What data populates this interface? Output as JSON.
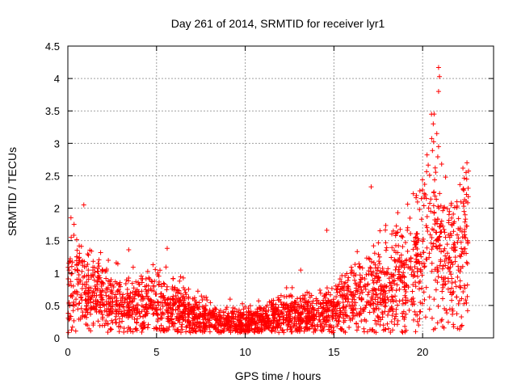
{
  "chart_data": {
    "type": "scatter",
    "title": "Day 261 of 2014, SRMTID for receiver lyr1",
    "xlabel": "GPS time / hours",
    "ylabel": "SRMTID / TECUs",
    "xlim": [
      0,
      24
    ],
    "ylim": [
      0,
      4.5
    ],
    "xticks": [
      0,
      5,
      10,
      15,
      20
    ],
    "yticks": [
      0,
      0.5,
      1,
      1.5,
      2,
      2.5,
      3,
      3.5,
      4,
      4.5
    ],
    "xtick_labels": [
      "0",
      "5",
      "10",
      "15",
      "20"
    ],
    "ytick_labels": [
      "0",
      "0.5",
      "1",
      "1.5",
      "2",
      "2.5",
      "3",
      "3.5",
      "4",
      "4.5"
    ],
    "grid": true,
    "marker": "plus",
    "color": "#ff0000",
    "series": [
      {
        "name": "lyr1",
        "trend_hours": [
          0,
          0.5,
          1,
          1.5,
          2,
          3,
          4,
          5,
          6,
          7,
          8,
          8.8,
          9.5,
          10.5,
          11.5,
          12.5,
          13.5,
          14.5,
          15.5,
          16.5,
          17.5,
          18.5,
          19.5,
          20,
          20.5,
          21,
          21.5,
          22,
          22.6
        ],
        "trend_median_tecu": [
          0.75,
          0.85,
          0.8,
          0.65,
          0.6,
          0.5,
          0.5,
          0.55,
          0.45,
          0.35,
          0.3,
          0.2,
          0.25,
          0.25,
          0.3,
          0.35,
          0.35,
          0.4,
          0.5,
          0.65,
          0.8,
          0.9,
          1.0,
          1.4,
          1.6,
          1.3,
          1.25,
          1.2,
          1.5
        ],
        "notable_points": [
          {
            "x": 20.9,
            "y": 4.17
          },
          {
            "x": 20.95,
            "y": 4.03
          },
          {
            "x": 20.9,
            "y": 3.8
          },
          {
            "x": 20.5,
            "y": 3.45
          },
          {
            "x": 20.6,
            "y": 3.3
          },
          {
            "x": 20.8,
            "y": 3.15
          },
          {
            "x": 20.9,
            "y": 2.95
          },
          {
            "x": 22.5,
            "y": 2.7
          },
          {
            "x": 22.45,
            "y": 2.55
          },
          {
            "x": 17.1,
            "y": 2.33
          },
          {
            "x": 0.9,
            "y": 2.05
          },
          {
            "x": 14.6,
            "y": 1.66
          },
          {
            "x": 18.6,
            "y": 1.93
          },
          {
            "x": 5.6,
            "y": 1.38
          }
        ]
      }
    ]
  }
}
